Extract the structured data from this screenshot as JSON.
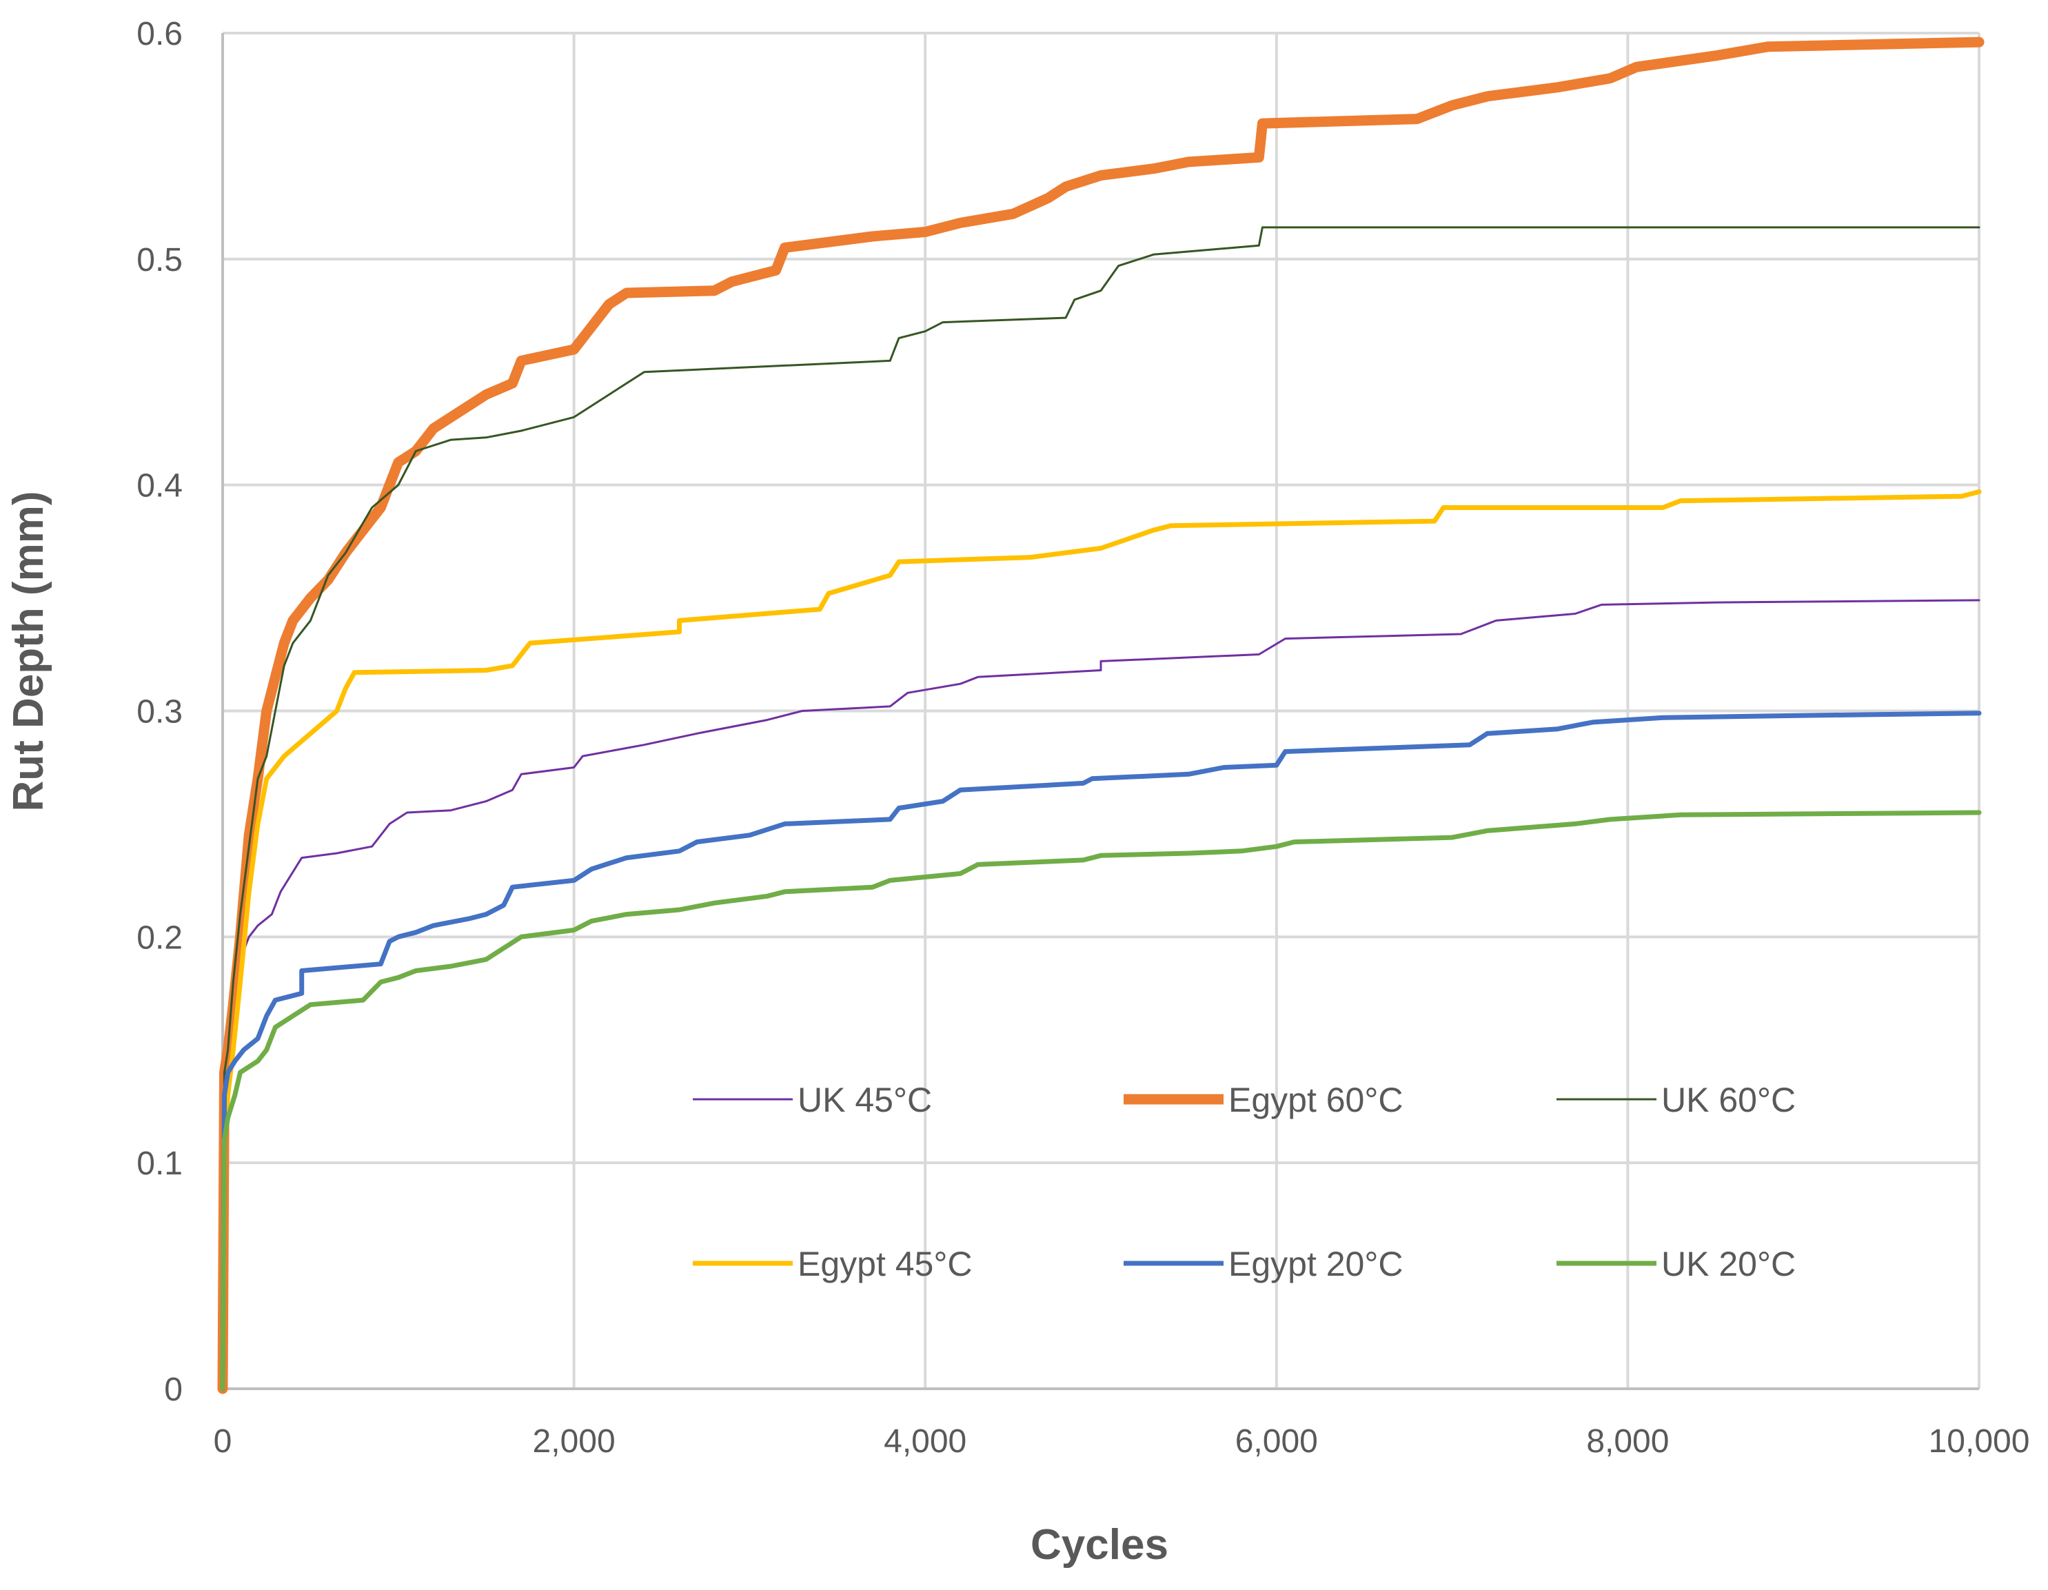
{
  "chart_data": {
    "type": "line",
    "title": "",
    "xlabel": "Cycles",
    "ylabel": "Rut Depth (mm)",
    "xlim": [
      0,
      10000
    ],
    "ylim": [
      0,
      0.6
    ],
    "x_ticks": [
      0,
      2000,
      4000,
      6000,
      8000,
      10000
    ],
    "x_tick_labels": [
      "0",
      "2,000",
      "4,000",
      "6,000",
      "8,000",
      "10,000"
    ],
    "y_ticks": [
      0,
      0.1,
      0.2,
      0.3,
      0.4,
      0.5,
      0.6
    ],
    "y_tick_labels": [
      "0",
      "0.1",
      "0.2",
      "0.3",
      "0.4",
      "0.5",
      "0.6"
    ],
    "grid": true,
    "legend_position": "lower-right",
    "series": [
      {
        "name": "UK 45°C",
        "color": "#7030A0",
        "width": "thin",
        "points": [
          [
            0,
            0
          ],
          [
            10,
            0.12
          ],
          [
            25,
            0.15
          ],
          [
            50,
            0.17
          ],
          [
            100,
            0.19
          ],
          [
            150,
            0.2
          ],
          [
            200,
            0.205
          ],
          [
            280,
            0.21
          ],
          [
            330,
            0.22
          ],
          [
            450,
            0.235
          ],
          [
            650,
            0.237
          ],
          [
            850,
            0.24
          ],
          [
            950,
            0.25
          ],
          [
            1050,
            0.255
          ],
          [
            1300,
            0.256
          ],
          [
            1500,
            0.26
          ],
          [
            1650,
            0.265
          ],
          [
            1700,
            0.272
          ],
          [
            2000,
            0.275
          ],
          [
            2050,
            0.28
          ],
          [
            2400,
            0.285
          ],
          [
            2700,
            0.29
          ],
          [
            3100,
            0.296
          ],
          [
            3300,
            0.3
          ],
          [
            3800,
            0.302
          ],
          [
            3900,
            0.308
          ],
          [
            4200,
            0.312
          ],
          [
            4300,
            0.315
          ],
          [
            5000,
            0.318
          ],
          [
            5000,
            0.322
          ],
          [
            5900,
            0.325
          ],
          [
            6050,
            0.332
          ],
          [
            7050,
            0.334
          ],
          [
            7250,
            0.34
          ],
          [
            7700,
            0.343
          ],
          [
            7850,
            0.347
          ],
          [
            8500,
            0.348
          ],
          [
            10000,
            0.349
          ]
        ]
      },
      {
        "name": "Egypt 60°C",
        "color": "#ED7D31",
        "width": "thick",
        "points": [
          [
            0,
            0
          ],
          [
            10,
            0.14
          ],
          [
            30,
            0.15
          ],
          [
            60,
            0.17
          ],
          [
            100,
            0.2
          ],
          [
            150,
            0.245
          ],
          [
            200,
            0.27
          ],
          [
            250,
            0.3
          ],
          [
            300,
            0.315
          ],
          [
            350,
            0.33
          ],
          [
            400,
            0.34
          ],
          [
            450,
            0.345
          ],
          [
            500,
            0.35
          ],
          [
            600,
            0.358
          ],
          [
            700,
            0.37
          ],
          [
            800,
            0.38
          ],
          [
            900,
            0.39
          ],
          [
            1000,
            0.41
          ],
          [
            1100,
            0.415
          ],
          [
            1200,
            0.425
          ],
          [
            1300,
            0.43
          ],
          [
            1400,
            0.435
          ],
          [
            1500,
            0.44
          ],
          [
            1650,
            0.445
          ],
          [
            1700,
            0.455
          ],
          [
            2000,
            0.46
          ],
          [
            2100,
            0.47
          ],
          [
            2200,
            0.48
          ],
          [
            2300,
            0.485
          ],
          [
            2800,
            0.486
          ],
          [
            2900,
            0.49
          ],
          [
            3150,
            0.495
          ],
          [
            3200,
            0.505
          ],
          [
            3700,
            0.51
          ],
          [
            4000,
            0.512
          ],
          [
            4200,
            0.516
          ],
          [
            4500,
            0.52
          ],
          [
            4700,
            0.527
          ],
          [
            4800,
            0.532
          ],
          [
            5000,
            0.537
          ],
          [
            5300,
            0.54
          ],
          [
            5500,
            0.543
          ],
          [
            5900,
            0.545
          ],
          [
            5920,
            0.56
          ],
          [
            6800,
            0.562
          ],
          [
            7000,
            0.568
          ],
          [
            7200,
            0.572
          ],
          [
            7600,
            0.576
          ],
          [
            7900,
            0.58
          ],
          [
            8050,
            0.585
          ],
          [
            8500,
            0.59
          ],
          [
            8800,
            0.594
          ],
          [
            10000,
            0.596
          ]
        ]
      },
      {
        "name": "UK 60°C",
        "color": "#375623",
        "width": "thin",
        "points": [
          [
            0,
            0
          ],
          [
            10,
            0.14
          ],
          [
            30,
            0.15
          ],
          [
            60,
            0.18
          ],
          [
            100,
            0.21
          ],
          [
            150,
            0.24
          ],
          [
            200,
            0.27
          ],
          [
            250,
            0.28
          ],
          [
            300,
            0.3
          ],
          [
            350,
            0.32
          ],
          [
            400,
            0.33
          ],
          [
            500,
            0.34
          ],
          [
            600,
            0.36
          ],
          [
            700,
            0.37
          ],
          [
            850,
            0.39
          ],
          [
            1000,
            0.4
          ],
          [
            1100,
            0.415
          ],
          [
            1300,
            0.42
          ],
          [
            1500,
            0.421
          ],
          [
            1700,
            0.424
          ],
          [
            2000,
            0.43
          ],
          [
            2100,
            0.435
          ],
          [
            2200,
            0.44
          ],
          [
            2300,
            0.445
          ],
          [
            2400,
            0.45
          ],
          [
            3800,
            0.455
          ],
          [
            3850,
            0.465
          ],
          [
            4000,
            0.468
          ],
          [
            4100,
            0.472
          ],
          [
            4800,
            0.474
          ],
          [
            4850,
            0.482
          ],
          [
            5000,
            0.486
          ],
          [
            5100,
            0.497
          ],
          [
            5300,
            0.502
          ],
          [
            5900,
            0.506
          ],
          [
            5920,
            0.514
          ],
          [
            10000,
            0.514
          ]
        ]
      },
      {
        "name": "Egypt 45°C",
        "color": "#FFC000",
        "width": "medium",
        "points": [
          [
            0,
            0
          ],
          [
            10,
            0.11
          ],
          [
            30,
            0.13
          ],
          [
            60,
            0.15
          ],
          [
            100,
            0.18
          ],
          [
            150,
            0.22
          ],
          [
            200,
            0.25
          ],
          [
            250,
            0.27
          ],
          [
            350,
            0.28
          ],
          [
            500,
            0.29
          ],
          [
            650,
            0.3
          ],
          [
            700,
            0.31
          ],
          [
            750,
            0.317
          ],
          [
            1500,
            0.318
          ],
          [
            1650,
            0.32
          ],
          [
            1750,
            0.33
          ],
          [
            2600,
            0.335
          ],
          [
            2600,
            0.34
          ],
          [
            3400,
            0.345
          ],
          [
            3450,
            0.352
          ],
          [
            3800,
            0.36
          ],
          [
            3850,
            0.366
          ],
          [
            4600,
            0.368
          ],
          [
            4800,
            0.37
          ],
          [
            5000,
            0.372
          ],
          [
            5300,
            0.38
          ],
          [
            5400,
            0.382
          ],
          [
            6900,
            0.384
          ],
          [
            6950,
            0.39
          ],
          [
            8200,
            0.39
          ],
          [
            8300,
            0.393
          ],
          [
            9900,
            0.395
          ],
          [
            10000,
            0.397
          ]
        ]
      },
      {
        "name": "Egypt 20°C",
        "color": "#4472C4",
        "width": "medium",
        "points": [
          [
            0,
            0
          ],
          [
            10,
            0.13
          ],
          [
            30,
            0.14
          ],
          [
            70,
            0.145
          ],
          [
            120,
            0.15
          ],
          [
            200,
            0.155
          ],
          [
            250,
            0.165
          ],
          [
            300,
            0.172
          ],
          [
            450,
            0.175
          ],
          [
            450,
            0.185
          ],
          [
            900,
            0.188
          ],
          [
            950,
            0.198
          ],
          [
            1000,
            0.2
          ],
          [
            1100,
            0.202
          ],
          [
            1200,
            0.205
          ],
          [
            1400,
            0.208
          ],
          [
            1500,
            0.21
          ],
          [
            1600,
            0.214
          ],
          [
            1650,
            0.222
          ],
          [
            2000,
            0.225
          ],
          [
            2100,
            0.23
          ],
          [
            2300,
            0.235
          ],
          [
            2600,
            0.238
          ],
          [
            2700,
            0.242
          ],
          [
            3000,
            0.245
          ],
          [
            3200,
            0.25
          ],
          [
            3800,
            0.252
          ],
          [
            3850,
            0.257
          ],
          [
            4100,
            0.26
          ],
          [
            4200,
            0.265
          ],
          [
            4900,
            0.268
          ],
          [
            4950,
            0.27
          ],
          [
            5500,
            0.272
          ],
          [
            5700,
            0.275
          ],
          [
            6000,
            0.276
          ],
          [
            6050,
            0.282
          ],
          [
            7100,
            0.285
          ],
          [
            7200,
            0.29
          ],
          [
            7600,
            0.292
          ],
          [
            7800,
            0.295
          ],
          [
            8200,
            0.297
          ],
          [
            9000,
            0.298
          ],
          [
            10000,
            0.299
          ]
        ]
      },
      {
        "name": "UK 20°C",
        "color": "#70AD47",
        "width": "medium",
        "points": [
          [
            0,
            0
          ],
          [
            10,
            0.11
          ],
          [
            30,
            0.12
          ],
          [
            70,
            0.13
          ],
          [
            100,
            0.14
          ],
          [
            200,
            0.145
          ],
          [
            250,
            0.15
          ],
          [
            300,
            0.16
          ],
          [
            400,
            0.165
          ],
          [
            500,
            0.17
          ],
          [
            800,
            0.172
          ],
          [
            900,
            0.18
          ],
          [
            1000,
            0.182
          ],
          [
            1100,
            0.185
          ],
          [
            1300,
            0.187
          ],
          [
            1500,
            0.19
          ],
          [
            1600,
            0.195
          ],
          [
            1700,
            0.2
          ],
          [
            2000,
            0.203
          ],
          [
            2100,
            0.207
          ],
          [
            2300,
            0.21
          ],
          [
            2600,
            0.212
          ],
          [
            2800,
            0.215
          ],
          [
            3100,
            0.218
          ],
          [
            3200,
            0.22
          ],
          [
            3700,
            0.222
          ],
          [
            3800,
            0.225
          ],
          [
            4200,
            0.228
          ],
          [
            4300,
            0.232
          ],
          [
            4900,
            0.234
          ],
          [
            5000,
            0.236
          ],
          [
            5500,
            0.237
          ],
          [
            5800,
            0.238
          ],
          [
            6000,
            0.24
          ],
          [
            6100,
            0.242
          ],
          [
            7000,
            0.244
          ],
          [
            7200,
            0.247
          ],
          [
            7700,
            0.25
          ],
          [
            7900,
            0.252
          ],
          [
            8300,
            0.254
          ],
          [
            10000,
            0.255
          ]
        ]
      }
    ],
    "legend": [
      {
        "label": "UK 45°C",
        "color": "#7030A0",
        "width": "thin"
      },
      {
        "label": "Egypt 60°C",
        "color": "#ED7D31",
        "width": "thick"
      },
      {
        "label": "UK 60°C",
        "color": "#375623",
        "width": "thin"
      },
      {
        "label": "Egypt 45°C",
        "color": "#FFC000",
        "width": "medium"
      },
      {
        "label": "Egypt 20°C",
        "color": "#4472C4",
        "width": "medium"
      },
      {
        "label": "UK 20°C",
        "color": "#70AD47",
        "width": "medium"
      }
    ]
  }
}
